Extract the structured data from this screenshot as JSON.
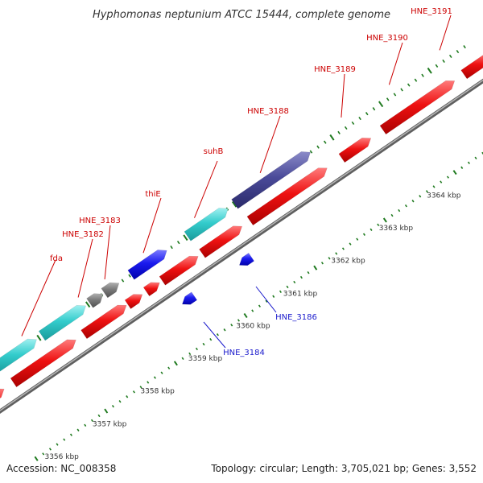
{
  "title": "Hyphomonas neptunium ATCC 15444, complete genome",
  "footer": {
    "accession": "Accession: NC_008358",
    "summary": "Topology: circular; Length: 3,705,021 bp; Genes: 3,552"
  },
  "colors": {
    "backbone": "#8a8a8a",
    "tick": "#1f7a1f",
    "label_top": "#cc0000",
    "label_bottom": "#1a1acc",
    "cds_forward": "#ee1111",
    "cds_reverse": "#ee1111",
    "gene_cyan": "#33cccc",
    "gene_gray": "#7a7a7a",
    "gene_blue": "#1a1aee",
    "gene_purple": "#4a4a99"
  },
  "kbp_ticks": [
    "3356 kbp",
    "3357 kbp",
    "3358 kbp",
    "3359 kbp",
    "3360 kbp",
    "3361 kbp",
    "3362 kbp",
    "3363 kbp",
    "3364 kbp"
  ],
  "top_labels": [
    "fda",
    "HNE_3182",
    "HNE_3183",
    "thiE",
    "suhB",
    "HNE_3188",
    "HNE_3189",
    "HNE_3190",
    "HNE_3191"
  ],
  "bottom_labels": [
    "HNE_3184",
    "HNE_3186"
  ]
}
